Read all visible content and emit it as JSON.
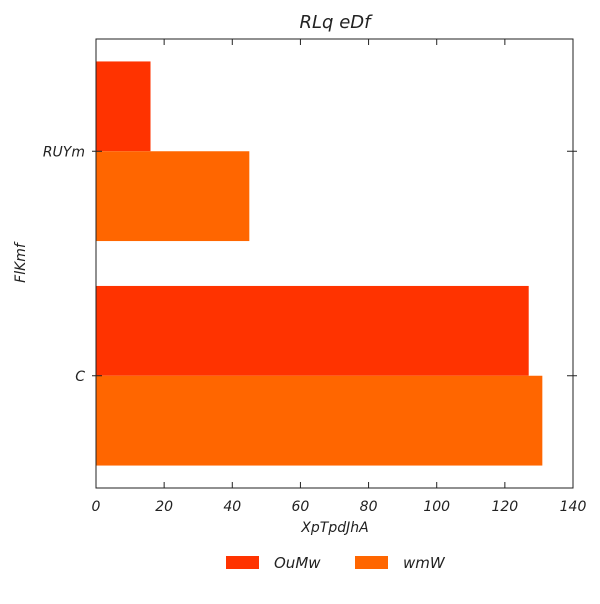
{
  "chart_data": {
    "type": "bar",
    "orientation": "horizontal",
    "title": "RLq eDf",
    "xlabel": "XpTpdJhA",
    "ylabel": "FlKmf",
    "categories": [
      "RUYm",
      "C"
    ],
    "series": [
      {
        "name": "OuMw",
        "values": [
          16,
          127
        ],
        "color": "#ff3300"
      },
      {
        "name": "wmW",
        "values": [
          45,
          131
        ],
        "color": "#ff6600"
      }
    ],
    "xlim": [
      0,
      140
    ],
    "xticks": [
      0,
      20,
      40,
      60,
      80,
      100,
      120,
      140
    ],
    "grid": false,
    "legend_position": "bottom-center"
  }
}
